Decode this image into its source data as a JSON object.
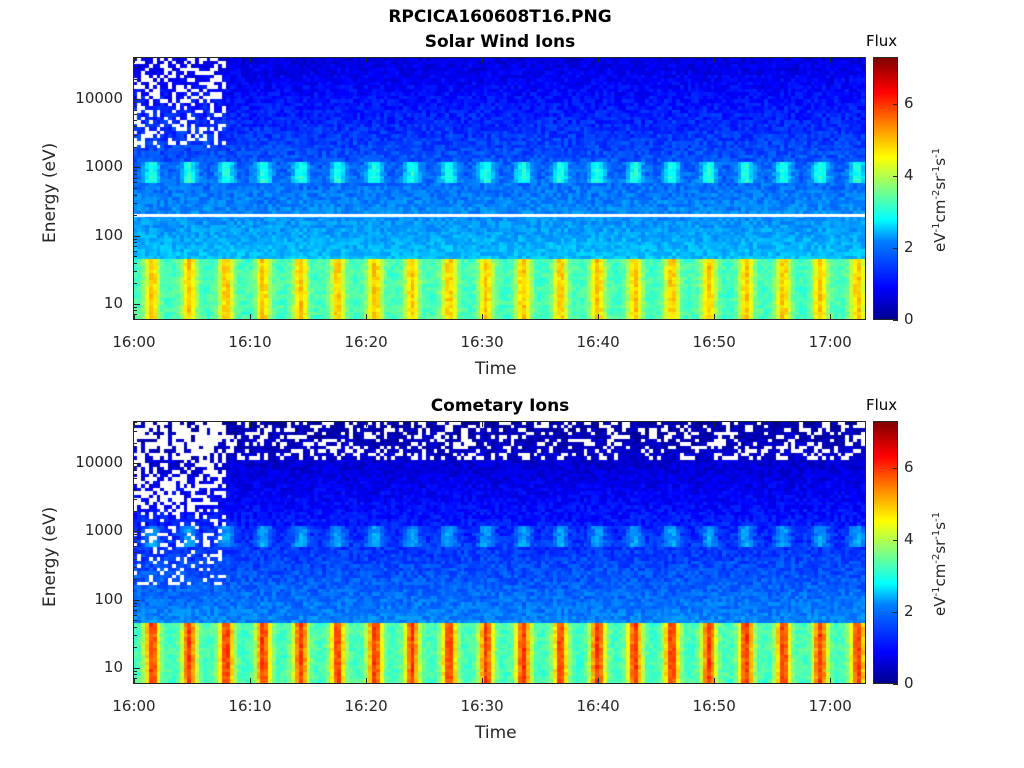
{
  "figure_title": "RPCICA160608T16.PNG",
  "chart_data": [
    {
      "type": "heatmap",
      "title": "Solar Wind Ions",
      "xlabel": "Time",
      "ylabel": "Energy (eV)",
      "x_ticks": [
        "16:00",
        "16:10",
        "16:20",
        "16:30",
        "16:40",
        "16:50",
        "17:00"
      ],
      "y_ticks": [
        "10",
        "100",
        "1000",
        "10000"
      ],
      "y_scale": "log",
      "ylim": [
        6,
        40000
      ],
      "xlim": [
        "16:00",
        "17:03"
      ],
      "colorbar": {
        "title": "Flux",
        "label": "eV-1cm-2sr-1s-1",
        "ticks": [
          "0",
          "2",
          "4",
          "6"
        ],
        "range": [
          0,
          7.3
        ]
      },
      "features": {
        "low_energy_band_eV": [
          10,
          30
        ],
        "low_energy_band_flux": 5,
        "mid_band_eV": [
          600,
          1200
        ],
        "mid_band_flux": 3,
        "background_high_flux": 1,
        "gap_line_eV": 200,
        "pulse_period_min": 3.2,
        "sparse_until": "16:08"
      }
    },
    {
      "type": "heatmap",
      "title": "Cometary Ions",
      "xlabel": "Time",
      "ylabel": "Energy (eV)",
      "x_ticks": [
        "16:00",
        "16:10",
        "16:20",
        "16:30",
        "16:40",
        "16:50",
        "17:00"
      ],
      "y_ticks": [
        "10",
        "100",
        "1000",
        "10000"
      ],
      "y_scale": "log",
      "ylim": [
        6,
        40000
      ],
      "xlim": [
        "16:00",
        "17:03"
      ],
      "colorbar": {
        "title": "Flux",
        "label": "eV-1cm-2sr-1s-1",
        "ticks": [
          "0",
          "2",
          "4",
          "6"
        ],
        "range": [
          0,
          7.3
        ]
      },
      "features": {
        "low_energy_band_eV": [
          10,
          30
        ],
        "low_energy_band_flux": 6,
        "mid_band_eV": [
          600,
          1200
        ],
        "mid_band_flux": 2.5,
        "background_high_flux": 0.6,
        "gap_line_eV": null,
        "pulse_period_min": 3.2,
        "sparse_until": "16:08"
      }
    }
  ]
}
